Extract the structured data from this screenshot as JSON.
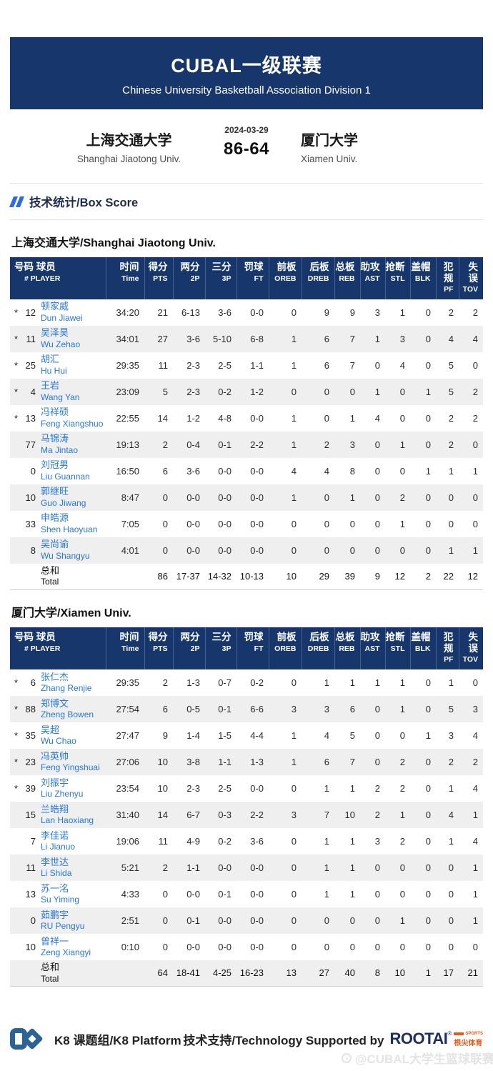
{
  "colors": {
    "navy": "#17366c",
    "accent": "#2e6ae0",
    "link": "#2878d5"
  },
  "banner": {
    "title": "CUBAL一级联赛",
    "subtitle": "Chinese University Basketball Association Division 1"
  },
  "scoreboard": {
    "date": "2024-03-29",
    "score": "86-64",
    "home": {
      "name_cn": "上海交通大学",
      "name_en": "Shanghai Jiaotong Univ."
    },
    "away": {
      "name_cn": "厦门大学",
      "name_en": "Xiamen Univ."
    }
  },
  "section": {
    "title": "技术统计/Box Score"
  },
  "columns": [
    {
      "cn": "号码 球员",
      "en": "# PLAYER"
    },
    {
      "cn": "时间",
      "en": "Time"
    },
    {
      "cn": "得分",
      "en": "PTS"
    },
    {
      "cn": "两分",
      "en": "2P"
    },
    {
      "cn": "三分",
      "en": "3P"
    },
    {
      "cn": "罚球",
      "en": "FT"
    },
    {
      "cn": "前板",
      "en": "OREB"
    },
    {
      "cn": "后板",
      "en": "DREB"
    },
    {
      "cn": "总板",
      "en": "REB"
    },
    {
      "cn": "助攻",
      "en": "AST"
    },
    {
      "cn": "抢断",
      "en": "STL"
    },
    {
      "cn": "盖帽",
      "en": "BLK"
    },
    {
      "cn": "犯规",
      "en": "PF"
    },
    {
      "cn": "失误",
      "en": "TOV"
    }
  ],
  "tables": [
    {
      "team_title": "上海交通大学/Shanghai Jiaotong Univ.",
      "rows": [
        {
          "starter": true,
          "num": "12",
          "cn": "顿家威",
          "en": "Dun Jiawei",
          "stats": [
            "34:20",
            "21",
            "6-13",
            "3-6",
            "0-0",
            "0",
            "9",
            "9",
            "3",
            "1",
            "0",
            "2",
            "2"
          ]
        },
        {
          "starter": true,
          "num": "11",
          "cn": "吴泽昊",
          "en": "Wu Zehao",
          "stats": [
            "34:01",
            "27",
            "3-6",
            "5-10",
            "6-8",
            "1",
            "6",
            "7",
            "1",
            "3",
            "0",
            "4",
            "4"
          ]
        },
        {
          "starter": true,
          "num": "25",
          "cn": "胡汇",
          "en": "Hu Hui",
          "stats": [
            "29:35",
            "11",
            "2-3",
            "2-5",
            "1-1",
            "1",
            "6",
            "7",
            "0",
            "4",
            "0",
            "5",
            "0"
          ]
        },
        {
          "starter": true,
          "num": "4",
          "cn": "王岩",
          "en": "Wang Yan",
          "stats": [
            "23:09",
            "5",
            "2-3",
            "0-2",
            "1-2",
            "0",
            "0",
            "0",
            "1",
            "0",
            "1",
            "5",
            "2"
          ]
        },
        {
          "starter": true,
          "num": "13",
          "cn": "冯祥硕",
          "en": "Feng Xiangshuo",
          "stats": [
            "22:55",
            "14",
            "1-2",
            "4-8",
            "0-0",
            "1",
            "0",
            "1",
            "4",
            "0",
            "0",
            "2",
            "2"
          ]
        },
        {
          "starter": false,
          "num": "77",
          "cn": "马锦涛",
          "en": "Ma Jintao",
          "stats": [
            "19:13",
            "2",
            "0-4",
            "0-1",
            "2-2",
            "1",
            "2",
            "3",
            "0",
            "1",
            "0",
            "2",
            "0"
          ]
        },
        {
          "starter": false,
          "num": "0",
          "cn": "刘冠男",
          "en": "Liu Guannan",
          "stats": [
            "16:50",
            "6",
            "3-6",
            "0-0",
            "0-0",
            "4",
            "4",
            "8",
            "0",
            "0",
            "1",
            "1",
            "1"
          ]
        },
        {
          "starter": false,
          "num": "10",
          "cn": "郭继旺",
          "en": "Guo Jiwang",
          "stats": [
            "8:47",
            "0",
            "0-0",
            "0-0",
            "0-0",
            "1",
            "0",
            "1",
            "0",
            "2",
            "0",
            "0",
            "0"
          ]
        },
        {
          "starter": false,
          "num": "33",
          "cn": "申皓源",
          "en": "Shen Haoyuan",
          "stats": [
            "7:05",
            "0",
            "0-0",
            "0-0",
            "0-0",
            "0",
            "0",
            "0",
            "0",
            "1",
            "0",
            "0",
            "0"
          ]
        },
        {
          "starter": false,
          "num": "8",
          "cn": "吴尚谕",
          "en": "Wu Shangyu",
          "stats": [
            "4:01",
            "0",
            "0-0",
            "0-0",
            "0-0",
            "0",
            "0",
            "0",
            "0",
            "0",
            "0",
            "1",
            "1"
          ]
        }
      ],
      "total": {
        "cn": "总和",
        "en": "Total",
        "stats": [
          "",
          "86",
          "17-37",
          "14-32",
          "10-13",
          "10",
          "29",
          "39",
          "9",
          "12",
          "2",
          "22",
          "12"
        ]
      }
    },
    {
      "team_title": "厦门大学/Xiamen Univ.",
      "rows": [
        {
          "starter": true,
          "num": "6",
          "cn": "张仁杰",
          "en": "Zhang Renjie",
          "stats": [
            "29:35",
            "2",
            "1-3",
            "0-7",
            "0-2",
            "0",
            "1",
            "1",
            "1",
            "1",
            "0",
            "1",
            "0"
          ]
        },
        {
          "starter": true,
          "num": "88",
          "cn": "郑博文",
          "en": "Zheng Bowen",
          "stats": [
            "27:54",
            "6",
            "0-5",
            "0-1",
            "6-6",
            "3",
            "3",
            "6",
            "0",
            "1",
            "0",
            "5",
            "3"
          ]
        },
        {
          "starter": true,
          "num": "35",
          "cn": "吴超",
          "en": "Wu Chao",
          "stats": [
            "27:47",
            "9",
            "1-4",
            "1-5",
            "4-4",
            "1",
            "4",
            "5",
            "0",
            "0",
            "1",
            "3",
            "4"
          ]
        },
        {
          "starter": true,
          "num": "23",
          "cn": "冯英帅",
          "en": "Feng Yingshuai",
          "stats": [
            "27:06",
            "10",
            "3-8",
            "1-1",
            "1-3",
            "1",
            "6",
            "7",
            "0",
            "2",
            "0",
            "2",
            "2"
          ]
        },
        {
          "starter": true,
          "num": "39",
          "cn": "刘振宇",
          "en": "Liu Zhenyu",
          "stats": [
            "23:54",
            "10",
            "2-3",
            "2-5",
            "0-0",
            "0",
            "1",
            "1",
            "2",
            "2",
            "0",
            "1",
            "4"
          ]
        },
        {
          "starter": false,
          "num": "15",
          "cn": "兰皓翔",
          "en": "Lan Haoxiang",
          "stats": [
            "31:40",
            "14",
            "6-7",
            "0-3",
            "2-2",
            "3",
            "7",
            "10",
            "2",
            "1",
            "0",
            "4",
            "1"
          ]
        },
        {
          "starter": false,
          "num": "7",
          "cn": "李佳诺",
          "en": "Li Jianuo",
          "stats": [
            "19:06",
            "11",
            "4-9",
            "0-2",
            "3-6",
            "0",
            "1",
            "1",
            "3",
            "2",
            "0",
            "1",
            "4"
          ]
        },
        {
          "starter": false,
          "num": "11",
          "cn": "李世达",
          "en": "Li Shida",
          "stats": [
            "5:21",
            "2",
            "1-1",
            "0-0",
            "0-0",
            "0",
            "1",
            "1",
            "0",
            "0",
            "0",
            "0",
            "1"
          ]
        },
        {
          "starter": false,
          "num": "13",
          "cn": "苏一洺",
          "en": "Su Yiming",
          "stats": [
            "4:33",
            "0",
            "0-0",
            "0-1",
            "0-0",
            "0",
            "1",
            "1",
            "0",
            "0",
            "0",
            "0",
            "1"
          ]
        },
        {
          "starter": false,
          "num": "0",
          "cn": "茹鹏宇",
          "en": "RU Pengyu",
          "stats": [
            "2:51",
            "0",
            "0-1",
            "0-0",
            "0-0",
            "0",
            "0",
            "0",
            "0",
            "1",
            "0",
            "0",
            "1"
          ]
        },
        {
          "starter": false,
          "num": "10",
          "cn": "曾祥一",
          "en": "Zeng Xiangyi",
          "stats": [
            "0:10",
            "0",
            "0-0",
            "0-0",
            "0-0",
            "0",
            "0",
            "0",
            "0",
            "0",
            "0",
            "0",
            "0"
          ]
        }
      ],
      "total": {
        "cn": "总和",
        "en": "Total",
        "stats": [
          "",
          "64",
          "18-41",
          "4-25",
          "16-23",
          "13",
          "27",
          "40",
          "8",
          "10",
          "1",
          "17",
          "21"
        ]
      }
    }
  ],
  "footer": {
    "k8_label": "K8 课题组/K8 Platform",
    "support_label": "技术支持/Technology Supported by",
    "rootai": "ROOTAI",
    "rootai_reg": "®",
    "rootai_sports": "SPORTS",
    "rootai_cn": "根尖体育"
  },
  "watermark": "@CUBAL大学生篮球联赛"
}
